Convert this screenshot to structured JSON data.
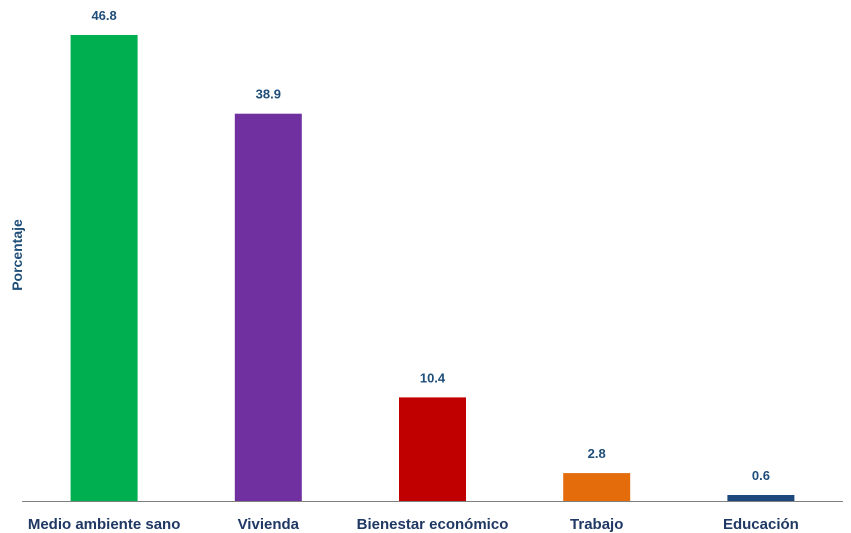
{
  "chart_data": {
    "type": "bar",
    "title": "",
    "xlabel": "",
    "ylabel": "Porcentaje",
    "ylim": [
      0,
      46.8
    ],
    "grid": false,
    "legend": "none",
    "categories": [
      "Medio ambiente sano",
      "Vivienda",
      "Bienestar económico",
      "Trabajo",
      "Educación"
    ],
    "values": [
      46.8,
      38.9,
      10.4,
      2.8,
      0.6
    ],
    "value_labels": [
      "46.8",
      "38.9",
      "10.4",
      "2.8",
      "0.6"
    ],
    "colors": [
      "#00b050",
      "#7030a0",
      "#c00000",
      "#e46c0a",
      "#1f497d"
    ],
    "axis_color": "#7f7f7f"
  }
}
